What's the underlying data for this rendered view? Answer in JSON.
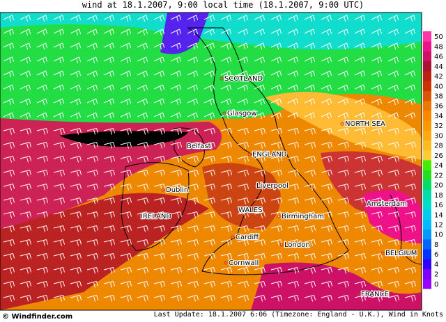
{
  "header": {
    "title": "wind at 18.1.2007, 9:00 local time (18.1.2007, 9:00 UTC)"
  },
  "places": [
    {
      "label": "SCOTLAND"
    },
    {
      "label": "Glasgow"
    },
    {
      "label": "NORTH SEA"
    },
    {
      "label": "Belfast"
    },
    {
      "label": "ENGLAND"
    },
    {
      "label": "Dublin"
    },
    {
      "label": "Liverpool"
    },
    {
      "label": "IRELAND"
    },
    {
      "label": "WALES"
    },
    {
      "label": "Birmingham"
    },
    {
      "label": "Amsterdam"
    },
    {
      "label": "Cardiff"
    },
    {
      "label": "London"
    },
    {
      "label": "Cornwall"
    },
    {
      "label": "BELGIUM"
    },
    {
      "label": "FRANCE"
    }
  ],
  "legend": {
    "ticks": [
      0,
      2,
      4,
      6,
      8,
      10,
      12,
      14,
      16,
      18,
      20,
      22,
      24,
      26,
      28,
      30,
      32,
      34,
      36,
      38,
      40,
      42,
      44,
      46,
      48,
      50
    ],
    "colors": [
      "#9900ff",
      "#7a00ff",
      "#3300ff",
      "#0033ff",
      "#0066ff",
      "#0099ff",
      "#00bbff",
      "#00ccee",
      "#00ddcc",
      "#00ddaa",
      "#00dd66",
      "#22dd22",
      "#44ee00",
      "#ffcc33",
      "#ffbb22",
      "#ffaa11",
      "#ff9900",
      "#ff8800",
      "#ee7700",
      "#dd5500",
      "#cc3300",
      "#bb2211",
      "#aa1133",
      "#cc1166",
      "#ee1188",
      "#ff33aa"
    ]
  },
  "footer": {
    "copyright": "© Windfinder.com",
    "update": "Last Update: 18.1.2007 6:06 (Timezone: England - U.K.), Wind in Knots"
  }
}
